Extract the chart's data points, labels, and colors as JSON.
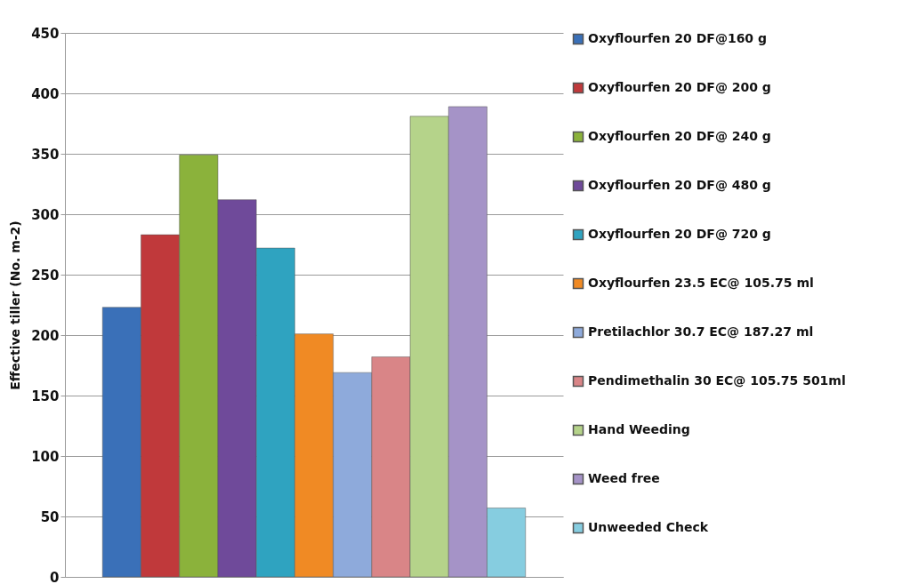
{
  "chart_data": {
    "type": "bar",
    "ylabel": "Effective tiller (No. m-2)",
    "categories": [
      null
    ],
    "series": [
      {
        "name": "Oxyflourfen  20  DF@160 g",
        "color": "#3a70b8",
        "values": [
          223
        ]
      },
      {
        "name": "Oxyflourfen  20  DF@ 200 g",
        "color": "#c0393b",
        "values": [
          283
        ]
      },
      {
        "name": "Oxyflourfen  20  DF@ 240 g",
        "color": "#8bb23b",
        "values": [
          349
        ]
      },
      {
        "name": "Oxyflourfen  20  DF@ 480 g",
        "color": "#6f4a9a",
        "values": [
          312
        ]
      },
      {
        "name": "Oxyflourfen  20  DF@ 720 g",
        "color": "#2fa3c0",
        "values": [
          272
        ]
      },
      {
        "name": "Oxyflourfen  23.5 EC@ 105.75 ml",
        "color": "#f08a24",
        "values": [
          201
        ]
      },
      {
        "name": "Pretilachlor 30.7 EC@ 187.27 ml",
        "color": "#8eaadb",
        "values": [
          169
        ]
      },
      {
        "name": "Pendimethalin 30  EC@ 105.75 501ml",
        "color": "#d98587",
        "values": [
          182
        ]
      },
      {
        "name": "Hand Weeding",
        "color": "#b5d38a",
        "values": [
          381
        ]
      },
      {
        "name": "Weed free",
        "color": "#a593c7",
        "values": [
          389
        ]
      },
      {
        "name": "Unweeded Check",
        "color": "#86cde0",
        "values": [
          57
        ]
      }
    ],
    "ylim": [
      0,
      450
    ],
    "yticks": [
      0,
      50,
      100,
      150,
      200,
      250,
      300,
      350,
      400,
      450
    ],
    "grid": "y",
    "legend": "right",
    "tick_labels": "y"
  }
}
